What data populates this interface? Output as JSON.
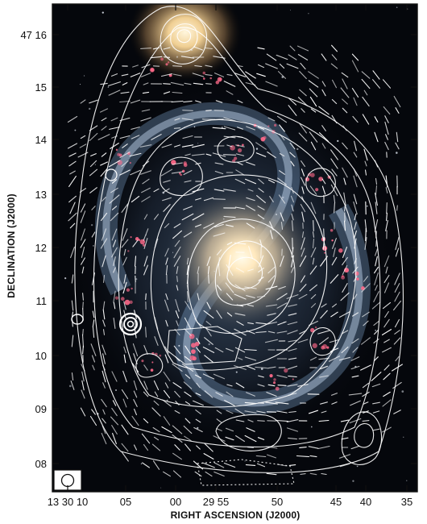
{
  "figure": {
    "x_axis_title": "RIGHT ASCENSION (J2000)",
    "y_axis_title": "DECLINATION (J2000)",
    "x_ticks": [
      "13 30 10",
      "05",
      "00",
      "29 55",
      "50",
      "45",
      "40",
      "35"
    ],
    "y_ticks": [
      "47 16",
      "15",
      "14",
      "13",
      "12",
      "11",
      "10",
      "09",
      "08"
    ]
  },
  "colors": {
    "sky": "#05070c",
    "galaxy_core": "#fff3d6",
    "arm_blue": "#8fb6e0",
    "hii_pink": "#ff6a8a",
    "contour": "#ffffff",
    "frame": "#111111"
  }
}
